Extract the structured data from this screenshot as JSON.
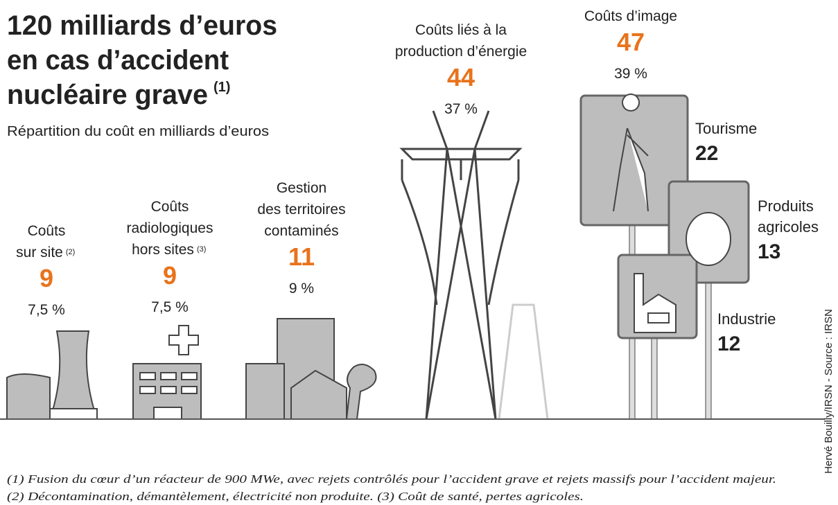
{
  "header": {
    "title": [
      "120 milliards d’euros",
      "en cas d’accident",
      "nucléaire grave"
    ],
    "title_note": "(1)",
    "subtitle": "Répartition du coût en milliards d’euros"
  },
  "items": [
    {
      "label": [
        "Coûts",
        "sur site"
      ],
      "note": "(2)",
      "value": "9",
      "share": "7,5 %"
    },
    {
      "label": [
        "Coûts",
        "radiologiques",
        "hors sites"
      ],
      "note": "(3)",
      "value": "9",
      "share": "7,5 %"
    },
    {
      "label": [
        "Gestion",
        "des territoires",
        "contaminés"
      ],
      "value": "11",
      "share": "9 %"
    },
    {
      "label": [
        "Coûts liés à la",
        "production d’énergie"
      ],
      "value": "44",
      "share": "37 %"
    },
    {
      "label": [
        "Coûts d’image"
      ],
      "value": "47",
      "share": "39 %"
    }
  ],
  "image_costs": [
    {
      "label": [
        "Tourisme"
      ],
      "value": "22"
    },
    {
      "label": [
        "Produits",
        "agricoles"
      ],
      "value": "13"
    },
    {
      "label": [
        "Industrie"
      ],
      "value": "12"
    }
  ],
  "footnotes": [
    "(1) Fusion du cœur d’un réacteur de 900 MWe, avec rejets contrôlés pour l’accident grave et rejets massifs pour l’accident majeur.",
    "(2) Décontamination, démantèlement, électricité non produite.  (3) Coût de santé, pertes agricoles."
  ],
  "credit": "Hervé Bouilly/IRSN - Source : IRSN"
}
